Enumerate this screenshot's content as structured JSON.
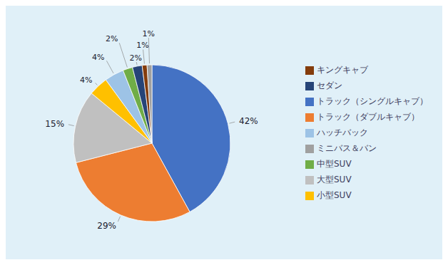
{
  "chart_data": {
    "type": "pie",
    "categories": [
      "トラック（シングルキャブ）",
      "トラック（ダブルキャブ）",
      "大型SUV",
      "小型SUV",
      "ハッチバック",
      "中型SUV",
      "セダン",
      "キングキャブ",
      "ミニバス＆バン"
    ],
    "values": [
      42,
      29,
      15,
      4,
      4,
      2,
      2,
      1,
      1
    ],
    "value_labels": [
      "42%",
      "29%",
      "15%",
      "4%",
      "4%",
      "2%",
      "2%",
      "1%",
      "1%"
    ],
    "colors": [
      "#4472C4",
      "#ED7D31",
      "#C0C0C0",
      "#FFC000",
      "#9DC3E6",
      "#70AD47",
      "#264478",
      "#843C0C",
      "#A0A0A0"
    ],
    "data_labels": true,
    "legend": "right"
  }
}
